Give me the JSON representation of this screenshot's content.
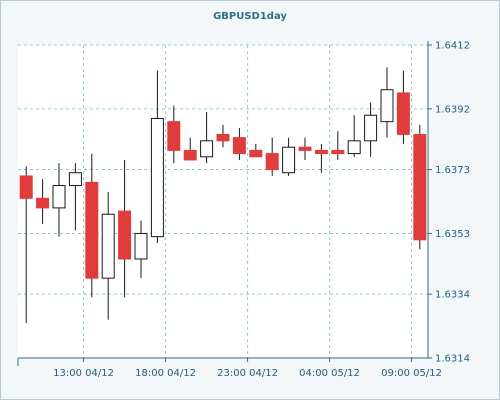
{
  "chart_data": {
    "type": "candlestick",
    "title": "GBPUSD1day",
    "xlabel": "",
    "ylabel": "",
    "ylim": [
      1.6314,
      1.6412
    ],
    "yticks": [
      1.6314,
      1.6334,
      1.6353,
      1.6373,
      1.6392,
      1.6412
    ],
    "ytick_labels": [
      "1.6314",
      "1.6334",
      "1.6353",
      "1.6373",
      "1.6392",
      "1.6412"
    ],
    "xticks": [
      {
        "index": 3.5,
        "label": "13:00 04/12"
      },
      {
        "index": 8.5,
        "label": "18:00 04/12"
      },
      {
        "index": 13.5,
        "label": "23:00 04/12"
      },
      {
        "index": 18.5,
        "label": "04:00 05/12"
      },
      {
        "index": 23.5,
        "label": "09:00 05/12"
      }
    ],
    "grid": true,
    "colors": {
      "up": "#ffffff",
      "down": "#e03c3c",
      "outline": "#1a1a1a",
      "grid": "#8fc9cc",
      "axis": "#2e6e8a"
    },
    "candles": [
      {
        "open": 1.6371,
        "high": 1.6374,
        "low": 1.6325,
        "close": 1.6364
      },
      {
        "open": 1.6364,
        "high": 1.637,
        "low": 1.6356,
        "close": 1.6361
      },
      {
        "open": 1.6361,
        "high": 1.6375,
        "low": 1.6352,
        "close": 1.6368
      },
      {
        "open": 1.6368,
        "high": 1.6375,
        "low": 1.6354,
        "close": 1.6372
      },
      {
        "open": 1.6369,
        "high": 1.6378,
        "low": 1.6333,
        "close": 1.6339
      },
      {
        "open": 1.6339,
        "high": 1.6366,
        "low": 1.6326,
        "close": 1.6359
      },
      {
        "open": 1.636,
        "high": 1.6376,
        "low": 1.6333,
        "close": 1.6345
      },
      {
        "open": 1.6345,
        "high": 1.6357,
        "low": 1.6339,
        "close": 1.6353
      },
      {
        "open": 1.6352,
        "high": 1.6404,
        "low": 1.635,
        "close": 1.6389
      },
      {
        "open": 1.6388,
        "high": 1.6393,
        "low": 1.6375,
        "close": 1.6379
      },
      {
        "open": 1.6379,
        "high": 1.6383,
        "low": 1.6376,
        "close": 1.6376
      },
      {
        "open": 1.6377,
        "high": 1.6391,
        "low": 1.6375,
        "close": 1.6382
      },
      {
        "open": 1.6384,
        "high": 1.6387,
        "low": 1.638,
        "close": 1.6382
      },
      {
        "open": 1.6383,
        "high": 1.6386,
        "low": 1.6376,
        "close": 1.6378
      },
      {
        "open": 1.6379,
        "high": 1.6381,
        "low": 1.6377,
        "close": 1.6377
      },
      {
        "open": 1.6378,
        "high": 1.6383,
        "low": 1.6371,
        "close": 1.6373
      },
      {
        "open": 1.6372,
        "high": 1.6383,
        "low": 1.6371,
        "close": 1.638
      },
      {
        "open": 1.638,
        "high": 1.6383,
        "low": 1.6376,
        "close": 1.6379
      },
      {
        "open": 1.6379,
        "high": 1.6381,
        "low": 1.6372,
        "close": 1.6378
      },
      {
        "open": 1.6379,
        "high": 1.6385,
        "low": 1.6376,
        "close": 1.6378
      },
      {
        "open": 1.6378,
        "high": 1.639,
        "low": 1.6377,
        "close": 1.6382
      },
      {
        "open": 1.6382,
        "high": 1.6394,
        "low": 1.6377,
        "close": 1.639
      },
      {
        "open": 1.6388,
        "high": 1.6405,
        "low": 1.6383,
        "close": 1.6398
      },
      {
        "open": 1.6397,
        "high": 1.6404,
        "low": 1.6381,
        "close": 1.6384
      },
      {
        "open": 1.6384,
        "high": 1.6387,
        "low": 1.6348,
        "close": 1.6351
      }
    ]
  }
}
